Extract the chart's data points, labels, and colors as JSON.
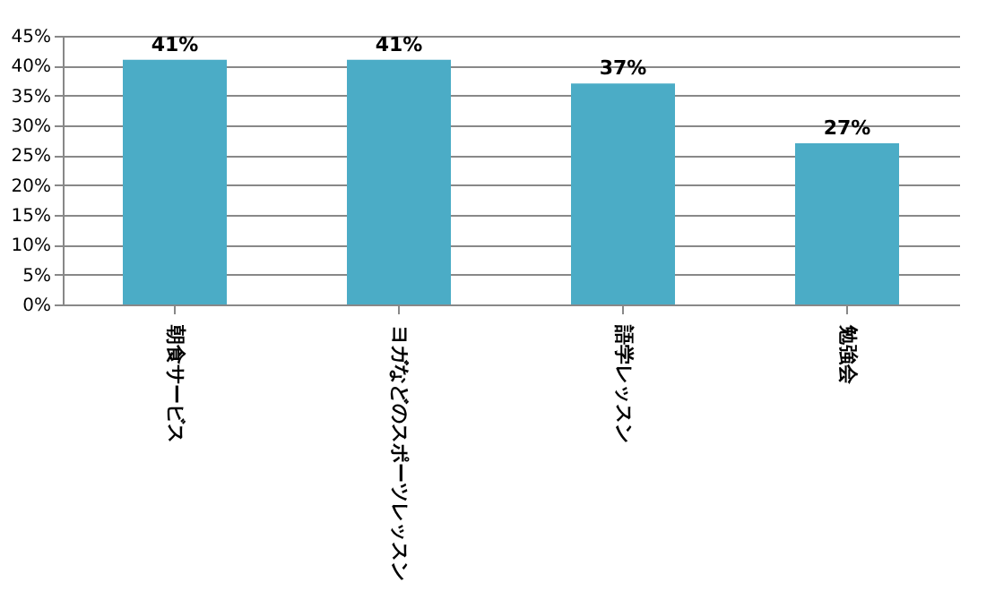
{
  "chart_data": {
    "type": "bar",
    "categories": [
      "朝食サービス",
      "ヨガなどのスポーツレッスン",
      "語学レッスン",
      "勉強会"
    ],
    "values": [
      41,
      41,
      37,
      27
    ],
    "value_labels": [
      "41%",
      "41%",
      "37%",
      "27%"
    ],
    "color": "#4bacc6",
    "ylim": [
      0,
      45
    ],
    "yticks": [
      {
        "value": 0,
        "label": "0%"
      },
      {
        "value": 5,
        "label": "5%"
      },
      {
        "value": 10,
        "label": "10%"
      },
      {
        "value": 15,
        "label": "15%"
      },
      {
        "value": 20,
        "label": "20%"
      },
      {
        "value": 25,
        "label": "25%"
      },
      {
        "value": 30,
        "label": "30%"
      },
      {
        "value": 35,
        "label": "35%"
      },
      {
        "value": 40,
        "label": "40%"
      },
      {
        "value": 45,
        "label": "45%"
      }
    ],
    "grid": "y"
  }
}
